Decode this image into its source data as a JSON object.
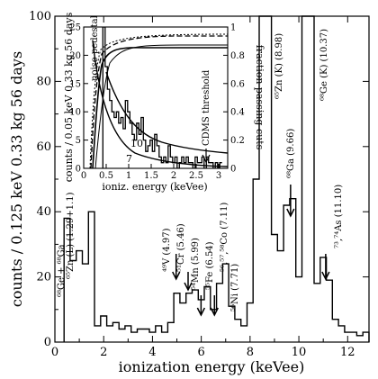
{
  "chart_data": [
    {
      "type": "line",
      "xlabel": "ionization energy (keVee)",
      "ylabel": "counts / 0.125 keV  0.33 kg  56 days",
      "xlim": [
        0,
        12.875
      ],
      "ylim": [
        0,
        100
      ],
      "xticks": [
        "0",
        "2",
        "4",
        "6",
        "8",
        "10",
        "12"
      ],
      "yticks": [
        "0",
        "20",
        "40",
        "60",
        "80",
        "100"
      ],
      "grid": false,
      "series": [
        {
          "x": [
            0.5,
            0.75,
            1.0,
            1.25,
            1.5,
            1.75,
            2.0,
            2.25,
            2.5,
            2.75,
            3.0,
            3.25,
            3.5,
            3.75,
            4.0,
            4.25,
            4.5,
            4.75,
            5.0,
            5.25,
            5.5,
            5.75,
            6.0,
            6.25,
            6.5,
            6.75,
            7.0,
            7.25,
            7.5,
            7.75,
            8.0,
            8.25,
            8.5,
            8.75,
            9.0,
            9.25,
            9.5,
            9.75,
            10.0,
            10.25,
            10.5,
            10.75,
            11.0,
            11.25,
            11.5,
            11.75,
            12.0,
            12.25,
            12.5,
            12.75
          ],
          "y": [
            38,
            25,
            28,
            24,
            40,
            5,
            8,
            5,
            6,
            4,
            5,
            3,
            4,
            4,
            3,
            5,
            3,
            6,
            15,
            12,
            15,
            16,
            13,
            17,
            10,
            18,
            24,
            11,
            7,
            5,
            12,
            50,
            100,
            100,
            33,
            28,
            42,
            44,
            20,
            100,
            100,
            18,
            26,
            19,
            7,
            5,
            3,
            3,
            2,
            3
          ]
        }
      ],
      "annotations": [
        {
          "text": "⁶⁸Ge + ⁶⁸Ga",
          "x": 1.3,
          "y": 46
        },
        {
          "text": "⁶⁵Zn (L) (1.29+1.1)",
          "x": 1.3,
          "y": 46
        },
        {
          "text": "⁴⁹V (4.97)",
          "x": 4.97,
          "y": 17
        },
        {
          "text": "⁵¹Cr (5.46)",
          "x": 5.46,
          "y": 15
        },
        {
          "text": "⁵⁴Mn (5.99)",
          "x": 5.99,
          "y": 12
        },
        {
          "text": "⁵⁵Fe (6.54)",
          "x": 6.54,
          "y": 12
        },
        {
          "text": "⁵⁶,⁵⁷,⁵⁸Co (7.11)",
          "x": 7.11,
          "y": 24
        },
        {
          "text": "⁵⁶Ni (7.71)",
          "x": 7.71,
          "y": 8
        },
        {
          "text": "⁶⁵Zn (K) (8.98)",
          "x": 8.98,
          "y": 95
        },
        {
          "text": "⁶⁸Ga (9.66)",
          "x": 9.66,
          "y": 46
        },
        {
          "text": "⁶⁸Ge (K) (10.37)",
          "x": 10.37,
          "y": 95
        },
        {
          "text": "⁷³,⁷⁴As (11.10)",
          "x": 11.1,
          "y": 22
        }
      ]
    },
    {
      "type": "line",
      "xlabel": "ioniz. energy (keVee)",
      "ylabel": "counts / 0.05 keV 0.33 kg 56 days",
      "y2label": "fraction passing cuts",
      "xlim": [
        0,
        3.2
      ],
      "ylim": [
        0,
        25
      ],
      "y2lim": [
        0,
        1
      ],
      "xticks": [
        "0",
        "0.5",
        "1",
        "1.5",
        "2",
        "2.5",
        "3"
      ],
      "yticks": [
        "0",
        "5",
        "10",
        "15",
        "20",
        "25"
      ],
      "y2ticks": [
        "0",
        "0.2",
        "0.4",
        "0.6",
        "0.8",
        "1"
      ],
      "series": [
        {
          "x": [
            0.45,
            0.5,
            0.55,
            0.6,
            0.65,
            0.7,
            0.75,
            0.8,
            0.85,
            0.9,
            0.95,
            1.0,
            1.05,
            1.1,
            1.15,
            1.2,
            1.25,
            1.3,
            1.35,
            1.4,
            1.45,
            1.5,
            1.55,
            1.6,
            1.65,
            1.7,
            1.75,
            1.8,
            1.85,
            1.9,
            1.95,
            2.0,
            2.05,
            2.1,
            2.15,
            2.2,
            2.25,
            2.3,
            2.35,
            2.4,
            2.45,
            2.5,
            2.55,
            2.6,
            2.65,
            2.7,
            2.75,
            2.8,
            2.85,
            2.9,
            2.95,
            3.0,
            3.05
          ],
          "y": [
            25,
            18,
            14,
            12,
            10,
            9,
            10,
            8,
            9,
            7,
            12,
            10,
            8,
            6,
            5,
            8,
            6,
            9,
            5,
            3,
            4,
            5,
            3,
            6,
            4,
            2,
            1,
            2,
            1,
            4,
            2,
            1,
            2,
            0,
            1,
            2,
            1,
            2,
            1,
            1,
            0,
            2,
            1,
            1,
            2,
            0,
            2,
            1,
            1,
            0,
            1,
            0,
            1
          ]
        }
      ],
      "annotations": [
        {
          "text": "noise pedestal",
          "x": 0.22,
          "y": 21
        },
        {
          "text": "10",
          "x": 1.45,
          "y": 4.4
        },
        {
          "text": "7",
          "x": 1.3,
          "y": 1.4
        },
        {
          "text": "CDMS threshold",
          "x": 2.75,
          "y": 3
        }
      ]
    }
  ]
}
